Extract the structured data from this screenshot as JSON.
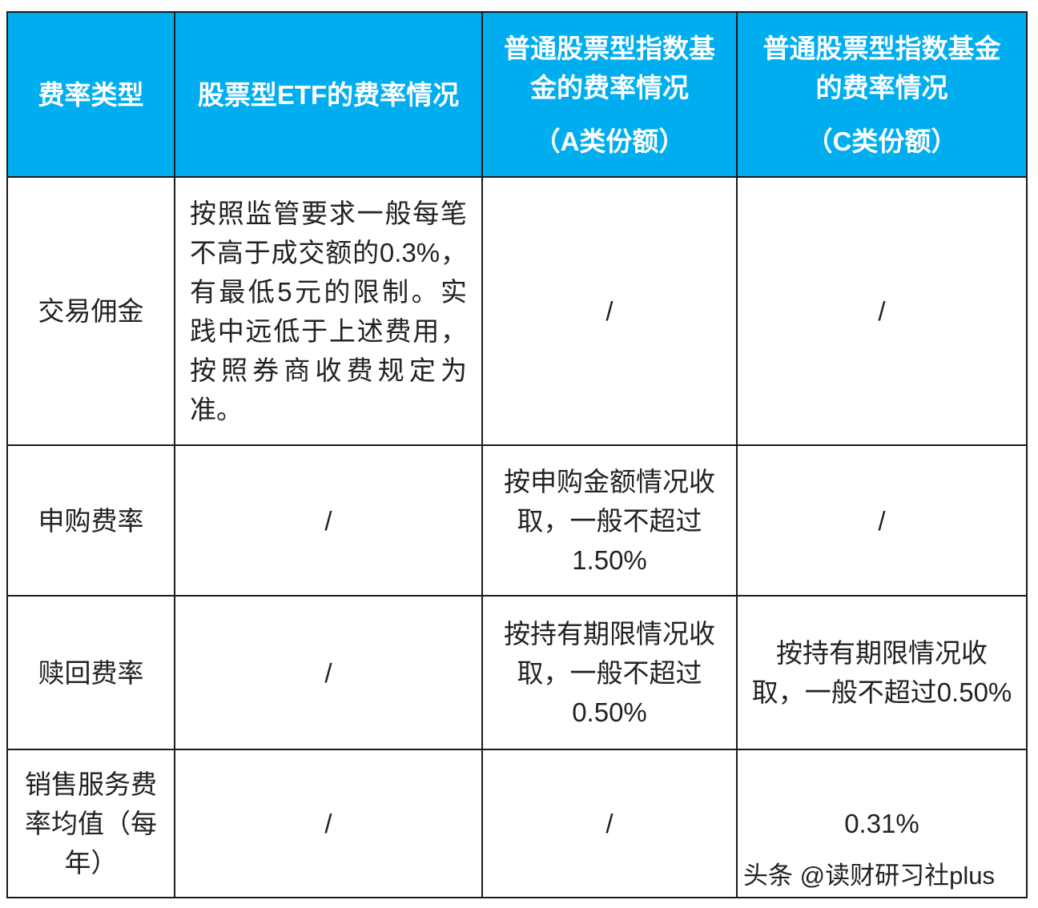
{
  "header": {
    "col1": "费率类型",
    "col2": "股票型ETF的费率情况",
    "col3": "普通股票型指数基金的费率情况",
    "col3_sub": "（A类份额）",
    "col4": "普通股票型指数基金的费率情况",
    "col4_sub": "（C类份额）",
    "color": "#00aeef"
  },
  "rows": [
    {
      "type": "交易佣金",
      "etf": "按照监管要求一般每笔不高于成交额的0.3%，有最低5元的限制。实践中远低于上述费用，按照券商收费规定为准。",
      "a": "/",
      "c": "/"
    },
    {
      "type": "申购费率",
      "etf": "/",
      "a": "按申购金额情况收取，一般不超过1.50%",
      "c": "/"
    },
    {
      "type": "赎回费率",
      "etf": "/",
      "a": "按持有期限情况收取，一般不超过0.50%",
      "c": "按持有期限情况收取，一般不超过0.50%"
    },
    {
      "type": "销售服务费率均值（每年）",
      "etf": "/",
      "a": "/",
      "c": "0.31%"
    }
  ],
  "watermark": "头条 @读财研习社plus"
}
